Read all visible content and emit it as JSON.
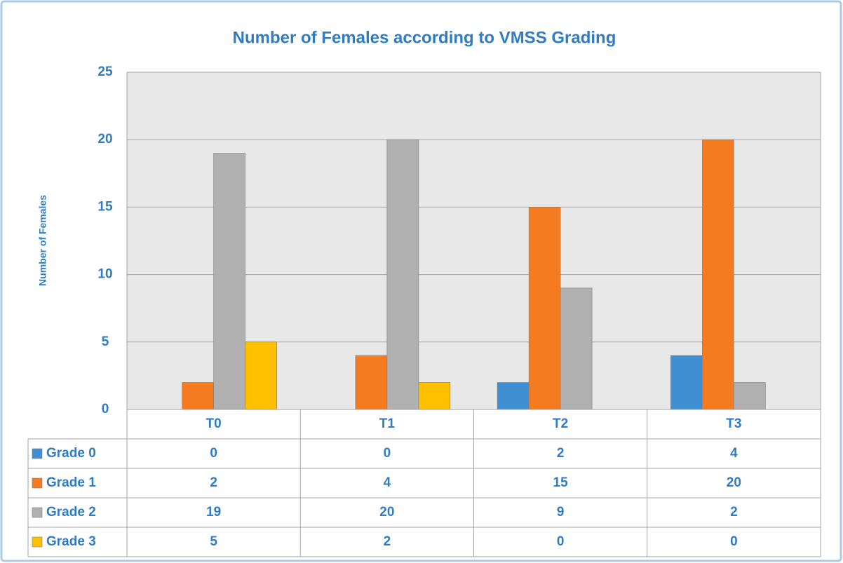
{
  "chart_data": {
    "type": "bar",
    "title": "Number of Females according to VMSS Grading",
    "y_label": "Number of Females",
    "categories": [
      "T0",
      "T1",
      "T2",
      "T3"
    ],
    "series": [
      {
        "name": "Grade 0",
        "color": "#3f8fd2",
        "values": [
          0,
          0,
          2,
          4
        ]
      },
      {
        "name": "Grade 1",
        "color": "#f47b20",
        "values": [
          2,
          4,
          15,
          20
        ]
      },
      {
        "name": "Grade 2",
        "color": "#b0b0b0",
        "values": [
          19,
          20,
          9,
          2
        ]
      },
      {
        "name": "Grade 3",
        "color": "#ffc000",
        "values": [
          5,
          2,
          0,
          0
        ]
      }
    ],
    "ylim": [
      0,
      25
    ],
    "yticks": [
      0,
      5,
      10,
      15,
      20,
      25
    ],
    "grid": true
  }
}
